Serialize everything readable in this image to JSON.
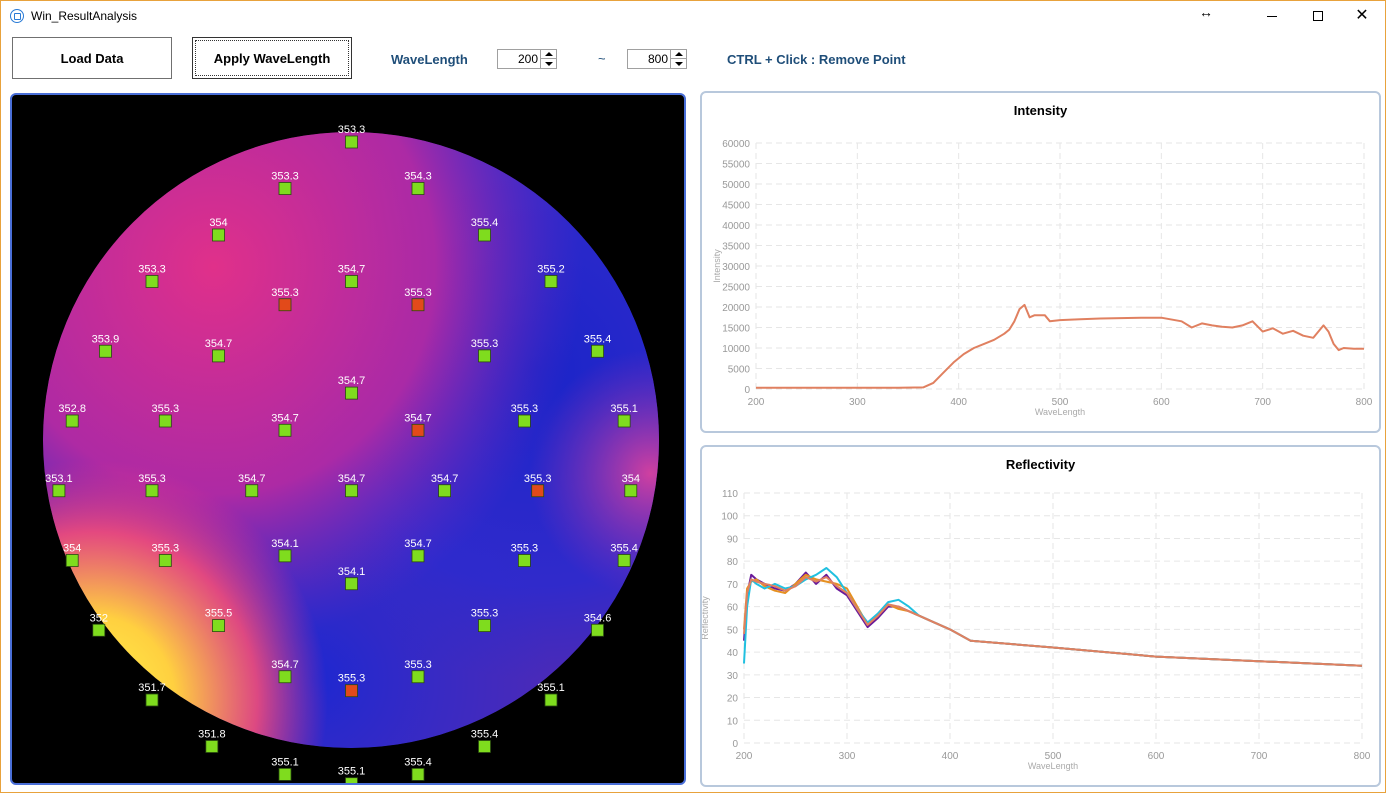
{
  "window": {
    "title": "Win_ResultAnalysis",
    "resize_icon": "↔",
    "close_glyph": "✕"
  },
  "toolbar": {
    "load_label": "Load Data",
    "apply_label": "Apply WaveLength",
    "wavelength_label": "WaveLength",
    "wl_min": "200",
    "tilde": "~",
    "wl_max": "800",
    "hint": "CTRL + Click : Remove Point"
  },
  "map": {
    "points": [
      {
        "label": "353.3",
        "col": 4,
        "row": 1,
        "sel": false
      },
      {
        "label": "353.3",
        "col": 5,
        "row": 0,
        "sel": false
      },
      {
        "label": "354.3",
        "col": 6,
        "row": 1,
        "sel": false
      },
      {
        "label": "354",
        "col": 3,
        "row": 2,
        "sel": false
      },
      {
        "label": "355.4",
        "col": 7,
        "row": 2,
        "sel": false
      },
      {
        "label": "353.3",
        "col": 2,
        "row": 3,
        "sel": false
      },
      {
        "label": "354.7",
        "col": 5,
        "row": 3,
        "sel": false
      },
      {
        "label": "355.3",
        "col": 4,
        "row": 3.5,
        "sel": true
      },
      {
        "label": "355.3",
        "col": 6,
        "row": 3.5,
        "sel": true
      },
      {
        "label": "355.2",
        "col": 8,
        "row": 3,
        "sel": false
      },
      {
        "label": "353.9",
        "col": 1.3,
        "row": 4.5,
        "sel": false
      },
      {
        "label": "354.7",
        "col": 3,
        "row": 4.6,
        "sel": false
      },
      {
        "label": "355.3",
        "col": 7,
        "row": 4.6,
        "sel": false
      },
      {
        "label": "355.4",
        "col": 8.7,
        "row": 4.5,
        "sel": false
      },
      {
        "label": "354.7",
        "col": 5,
        "row": 5.4,
        "sel": false
      },
      {
        "label": "352.8",
        "col": 0.8,
        "row": 6,
        "sel": false
      },
      {
        "label": "355.3",
        "col": 2.2,
        "row": 6,
        "sel": false
      },
      {
        "label": "354.7",
        "col": 4,
        "row": 6.2,
        "sel": false
      },
      {
        "label": "354.7",
        "col": 6,
        "row": 6.2,
        "sel": true
      },
      {
        "label": "355.3",
        "col": 7.6,
        "row": 6,
        "sel": false
      },
      {
        "label": "355.1",
        "col": 9.1,
        "row": 6,
        "sel": false
      },
      {
        "label": "353.1",
        "col": 0.6,
        "row": 7.5,
        "sel": false
      },
      {
        "label": "355.3",
        "col": 2,
        "row": 7.5,
        "sel": false
      },
      {
        "label": "354.7",
        "col": 3.5,
        "row": 7.5,
        "sel": false
      },
      {
        "label": "354.7",
        "col": 5,
        "row": 7.5,
        "sel": false
      },
      {
        "label": "354.7",
        "col": 6.4,
        "row": 7.5,
        "sel": false
      },
      {
        "label": "355.3",
        "col": 7.8,
        "row": 7.5,
        "sel": true
      },
      {
        "label": "354",
        "col": 9.2,
        "row": 7.5,
        "sel": false
      },
      {
        "label": "354",
        "col": 0.8,
        "row": 9,
        "sel": false
      },
      {
        "label": "355.3",
        "col": 2.2,
        "row": 9,
        "sel": false
      },
      {
        "label": "354.1",
        "col": 4,
        "row": 8.9,
        "sel": false
      },
      {
        "label": "354.7",
        "col": 6,
        "row": 8.9,
        "sel": false
      },
      {
        "label": "355.3",
        "col": 7.6,
        "row": 9,
        "sel": false
      },
      {
        "label": "355.4",
        "col": 9.1,
        "row": 9,
        "sel": false
      },
      {
        "label": "354.1",
        "col": 5,
        "row": 9.5,
        "sel": false
      },
      {
        "label": "352",
        "col": 1.2,
        "row": 10.5,
        "sel": false
      },
      {
        "label": "355.5",
        "col": 3,
        "row": 10.4,
        "sel": false
      },
      {
        "label": "355.3",
        "col": 7,
        "row": 10.4,
        "sel": false
      },
      {
        "label": "354.6",
        "col": 8.7,
        "row": 10.5,
        "sel": false
      },
      {
        "label": "354.7",
        "col": 4,
        "row": 11.5,
        "sel": false
      },
      {
        "label": "355.3",
        "col": 5,
        "row": 11.8,
        "sel": true
      },
      {
        "label": "355.3",
        "col": 6,
        "row": 11.5,
        "sel": false
      },
      {
        "label": "351.7",
        "col": 2,
        "row": 12,
        "sel": false
      },
      {
        "label": "355.1",
        "col": 8,
        "row": 12,
        "sel": false
      },
      {
        "label": "351.8",
        "col": 2.9,
        "row": 13,
        "sel": false
      },
      {
        "label": "355.4",
        "col": 7,
        "row": 13,
        "sel": false
      },
      {
        "label": "355.1",
        "col": 4,
        "row": 13.6,
        "sel": false
      },
      {
        "label": "355.1",
        "col": 5,
        "row": 13.8,
        "sel": false
      },
      {
        "label": "355.4",
        "col": 6,
        "row": 13.6,
        "sel": false
      }
    ],
    "colors": {
      "marker": "#7fdc1e",
      "marker_selected": "#e24a1a",
      "label": "#ffffff"
    }
  },
  "charts": {
    "intensity": {
      "title": "Intensity",
      "xlabel": "WaveLength",
      "ylabel": "Intensity",
      "xlim": [
        200,
        800
      ],
      "ylim": [
        0,
        60000
      ],
      "xticks": [
        200,
        300,
        400,
        500,
        600,
        700,
        800
      ],
      "yticks": [
        0,
        5000,
        10000,
        15000,
        20000,
        25000,
        30000,
        35000,
        40000,
        45000,
        50000,
        55000,
        60000
      ],
      "series": [
        {
          "color": "#e08060",
          "x": [
            200,
            250,
            300,
            340,
            365,
            375,
            385,
            395,
            405,
            415,
            425,
            435,
            445,
            450,
            455,
            460,
            465,
            470,
            475,
            480,
            485,
            490,
            500,
            520,
            540,
            560,
            580,
            600,
            620,
            630,
            640,
            650,
            660,
            670,
            680,
            690,
            700,
            710,
            720,
            730,
            740,
            750,
            760,
            765,
            770,
            775,
            780,
            790,
            800
          ],
          "y": [
            300,
            300,
            300,
            300,
            400,
            1500,
            4000,
            6500,
            8500,
            10000,
            11000,
            12000,
            13500,
            14500,
            16500,
            19500,
            20500,
            17500,
            18000,
            18000,
            18000,
            16500,
            16800,
            17000,
            17200,
            17300,
            17400,
            17400,
            16500,
            15000,
            16000,
            15500,
            15200,
            15000,
            15500,
            16500,
            14000,
            14800,
            13500,
            14200,
            13000,
            12500,
            15500,
            14000,
            11000,
            9500,
            10000,
            9800,
            9800
          ]
        }
      ]
    },
    "reflectivity": {
      "title": "Reflectivity",
      "xlabel": "WaveLength",
      "ylabel": "Reflectivity",
      "xlim": [
        200,
        800
      ],
      "ylim": [
        0,
        110
      ],
      "xticks": [
        200,
        300,
        400,
        500,
        600,
        700,
        800
      ],
      "yticks": [
        0,
        10,
        20,
        30,
        40,
        50,
        60,
        70,
        80,
        90,
        100,
        110
      ],
      "series": [
        {
          "color": "#6a1a9a",
          "x": [
            200,
            203,
            207,
            212,
            220,
            230,
            240,
            250,
            260,
            270,
            280,
            290,
            300,
            310,
            320,
            330,
            340,
            350,
            360,
            370,
            380,
            400,
            420,
            500,
            600,
            700,
            800
          ],
          "y": [
            45,
            65,
            74,
            72,
            70,
            68,
            67,
            70,
            75,
            70,
            74,
            68,
            65,
            58,
            51,
            55,
            60,
            60,
            58,
            56,
            54,
            50,
            45,
            42,
            38,
            36,
            34
          ]
        },
        {
          "color": "#e69020",
          "x": [
            200,
            203,
            207,
            212,
            220,
            230,
            240,
            250,
            260,
            270,
            280,
            290,
            300,
            310,
            320,
            330,
            340,
            350,
            360,
            370,
            380,
            400,
            420,
            500,
            600,
            700,
            800
          ],
          "y": [
            50,
            68,
            71,
            72,
            69,
            67,
            66,
            70,
            74,
            72,
            71,
            70,
            68,
            60,
            52,
            56,
            61,
            59,
            58,
            56,
            54,
            50,
            45,
            42,
            38,
            36,
            34
          ]
        },
        {
          "color": "#20c0e0",
          "x": [
            200,
            203,
            207,
            212,
            220,
            230,
            240,
            250,
            260,
            270,
            280,
            290,
            300,
            310,
            320,
            330,
            340,
            350,
            360,
            370,
            380,
            400,
            420,
            500,
            600,
            700,
            800
          ],
          "y": [
            35,
            60,
            72,
            70,
            68,
            70,
            68,
            69,
            72,
            74,
            77,
            73,
            66,
            59,
            53,
            57,
            62,
            63,
            60,
            56,
            54,
            50,
            45,
            42,
            38,
            36,
            34
          ]
        },
        {
          "color": "#e08060",
          "x": [
            200,
            203,
            207,
            212,
            220,
            230,
            240,
            250,
            260,
            270,
            280,
            290,
            300,
            310,
            320,
            330,
            340,
            350,
            360,
            370,
            380,
            400,
            420,
            500,
            600,
            700,
            800
          ],
          "y": [
            48,
            66,
            72,
            71,
            70,
            69,
            67,
            69,
            73,
            71,
            73,
            69,
            66,
            59,
            52,
            56,
            61,
            60,
            58,
            56,
            54,
            50,
            45,
            42,
            38,
            36,
            34
          ]
        }
      ]
    }
  }
}
